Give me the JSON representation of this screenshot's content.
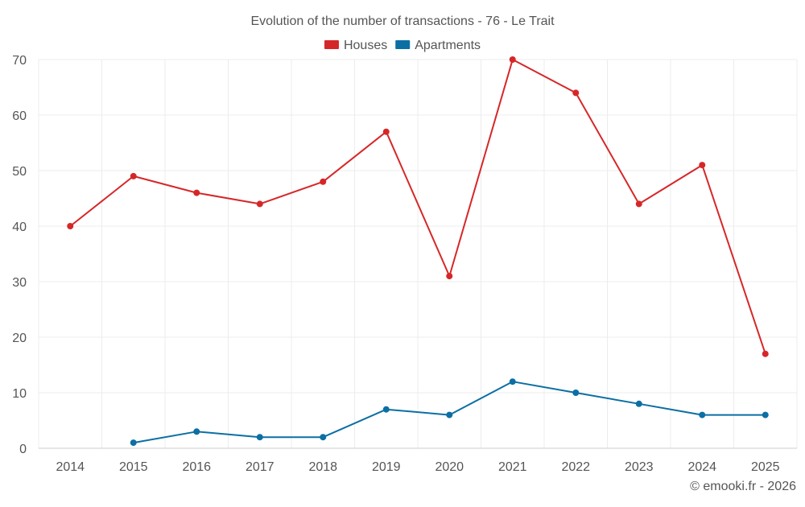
{
  "chart_data": {
    "type": "line",
    "title": "Evolution of the number of transactions - 76 - Le Trait",
    "x": [
      "2014",
      "2015",
      "2016",
      "2017",
      "2018",
      "2019",
      "2020",
      "2021",
      "2022",
      "2023",
      "2024",
      "2025"
    ],
    "y_ticks": [
      "0",
      "10",
      "20",
      "30",
      "40",
      "50",
      "60",
      "70"
    ],
    "ylim": [
      0,
      70
    ],
    "grid": true,
    "legend_position": "top-center",
    "series": [
      {
        "name": "Houses",
        "color": "#d62728",
        "values": [
          40,
          49,
          46,
          44,
          48,
          57,
          31,
          70,
          64,
          44,
          51,
          17
        ]
      },
      {
        "name": "Apartments",
        "color": "#0b6fa4",
        "values": [
          null,
          1,
          3,
          2,
          2,
          7,
          6,
          12,
          10,
          8,
          6,
          6
        ]
      }
    ],
    "credit": "© emooki.fr - 2026"
  }
}
